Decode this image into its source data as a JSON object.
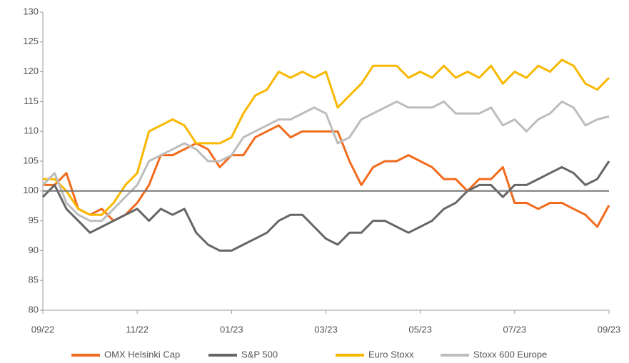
{
  "chart_data": {
    "type": "line",
    "categories": [
      "09/22",
      null,
      null,
      null,
      null,
      null,
      null,
      null,
      "11/22",
      null,
      null,
      null,
      null,
      null,
      null,
      null,
      "01/23",
      null,
      null,
      null,
      null,
      null,
      null,
      null,
      "03/23",
      null,
      null,
      null,
      null,
      null,
      null,
      null,
      "05/23",
      null,
      null,
      null,
      null,
      null,
      null,
      null,
      "07/23",
      null,
      null,
      null,
      null,
      null,
      null,
      null,
      "09/23"
    ],
    "series": [
      {
        "name": "OMX Helsinki Cap",
        "color": "#f26b1d",
        "values": [
          101,
          101,
          103,
          97,
          96,
          97,
          95,
          96,
          98,
          101,
          106,
          106,
          107,
          108,
          107,
          104,
          106,
          106,
          109,
          110,
          111,
          109,
          110,
          110,
          110,
          110,
          105,
          101,
          104,
          105,
          105,
          106,
          105,
          104,
          102,
          102,
          100,
          102,
          102,
          104,
          98,
          98,
          97,
          98,
          98,
          97,
          96,
          94,
          97.6
        ]
      },
      {
        "name": "S&P 500",
        "color": "#666666",
        "values": [
          99,
          101,
          97,
          95,
          93,
          94,
          95,
          96,
          97,
          95,
          97,
          96,
          97,
          93,
          91,
          90,
          90,
          91,
          92,
          93,
          95,
          96,
          96,
          94,
          92,
          91,
          93,
          93,
          95,
          95,
          94,
          93,
          94,
          95,
          97,
          98,
          100,
          101,
          101,
          99,
          101,
          101,
          102,
          103,
          104,
          103,
          101,
          102,
          105
        ]
      },
      {
        "name": "Euro Stoxx",
        "color": "#f9b800",
        "values": [
          102,
          102,
          100,
          97,
          96,
          96,
          98,
          101,
          103,
          110,
          111,
          112,
          111,
          108,
          108,
          108,
          109,
          113,
          116,
          117,
          120,
          119,
          120,
          119,
          120,
          114,
          116,
          118,
          121,
          121,
          121,
          119,
          120,
          119,
          121,
          119,
          120,
          119,
          121,
          118,
          120,
          119,
          121,
          120,
          122,
          121,
          118,
          117,
          119
        ]
      },
      {
        "name": "Stoxx 600 Europe",
        "color": "#bdbdbd",
        "values": [
          101,
          103,
          98,
          96,
          95,
          95,
          97,
          99,
          101,
          105,
          106,
          107,
          108,
          107,
          105,
          105,
          106,
          109,
          110,
          111,
          112,
          112,
          113,
          114,
          113,
          108,
          109,
          112,
          113,
          114,
          115,
          114,
          114,
          114,
          115,
          113,
          113,
          113,
          114,
          111,
          112,
          110,
          112,
          113,
          115,
          114,
          111,
          112,
          112.5
        ]
      }
    ],
    "ylim": [
      80,
      130
    ],
    "yticks": [
      80,
      85,
      90,
      95,
      100,
      105,
      110,
      115,
      120,
      125,
      130
    ],
    "reference_line": 100,
    "legend": "bottom"
  }
}
